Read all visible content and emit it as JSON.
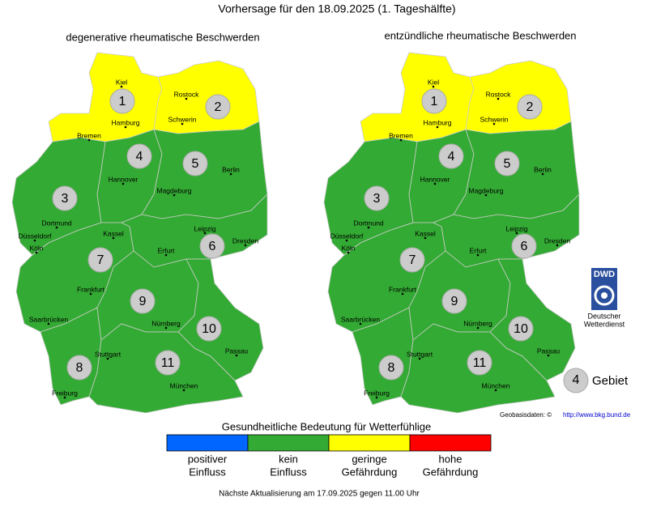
{
  "header": {
    "title": "Vorhersage für den 18.09.2025 (1. Tageshälfte)"
  },
  "maps": [
    {
      "title": "degenerative rheumatische Beschwerden",
      "regions": [
        {
          "label": 1,
          "color": "#ffff00"
        },
        {
          "label": 2,
          "color": "#ffff00"
        },
        {
          "label": 3,
          "color": "#33aa33"
        },
        {
          "label": 4,
          "color": "#33aa33"
        },
        {
          "label": 5,
          "color": "#33aa33"
        },
        {
          "label": 6,
          "color": "#33aa33"
        },
        {
          "label": 7,
          "color": "#33aa33"
        },
        {
          "label": 8,
          "color": "#33aa33"
        },
        {
          "label": 9,
          "color": "#33aa33"
        },
        {
          "label": 10,
          "color": "#33aa33"
        },
        {
          "label": 11,
          "color": "#33aa33"
        }
      ]
    },
    {
      "title": "entzündliche rheumatische Beschwerden",
      "regions": [
        {
          "label": 1,
          "color": "#ffff00"
        },
        {
          "label": 2,
          "color": "#ffff00"
        },
        {
          "label": 3,
          "color": "#33aa33"
        },
        {
          "label": 4,
          "color": "#33aa33"
        },
        {
          "label": 5,
          "color": "#33aa33"
        },
        {
          "label": 6,
          "color": "#33aa33"
        },
        {
          "label": 7,
          "color": "#33aa33"
        },
        {
          "label": 8,
          "color": "#33aa33"
        },
        {
          "label": 9,
          "color": "#33aa33"
        },
        {
          "label": 10,
          "color": "#33aa33"
        },
        {
          "label": 11,
          "color": "#33aa33"
        }
      ]
    }
  ],
  "cities": [
    "Kiel",
    "Hamburg",
    "Bremen",
    "Rostock",
    "Schwerin",
    "Hannover",
    "Berlin",
    "Magdeburg",
    "Dortmund",
    "Düsseldorf",
    "Köln",
    "Kassel",
    "Leipzig",
    "Dresden",
    "Erfurt",
    "Frankfurt",
    "Saarbrücken",
    "Nürnberg",
    "Stuttgart",
    "Passau",
    "Freiburg",
    "München"
  ],
  "legend": {
    "title": "Gesundheitliche Bedeutung für Wetterfühlige",
    "items": [
      {
        "lines": [
          "positiver",
          "Einfluss"
        ],
        "color": "#0066ff"
      },
      {
        "lines": [
          "kein",
          "Einfluss"
        ],
        "color": "#33aa33"
      },
      {
        "lines": [
          "geringe",
          "Gefährdung"
        ],
        "color": "#ffff00"
      },
      {
        "lines": [
          "hohe",
          "Gefährdung"
        ],
        "color": "#ff0000"
      }
    ]
  },
  "area_key": {
    "number": 4,
    "label": "Gebiet"
  },
  "logo": {
    "abbr": "DWD",
    "line1": "Deutscher",
    "line2": "Wetterdienst"
  },
  "source": {
    "label": "Geobasisdaten: ©",
    "link": "http://www.bkg.bund.de"
  },
  "footer": "Nächste Aktualisierung am 17.09.2025 gegen 11.00 Uhr"
}
